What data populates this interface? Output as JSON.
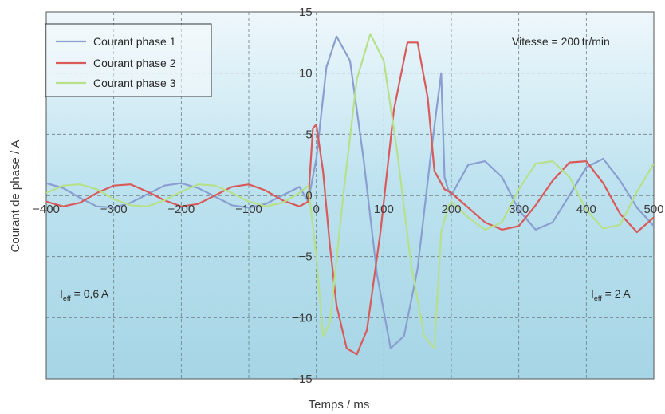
{
  "chart_data": {
    "type": "line",
    "xlabel": "Temps / ms",
    "ylabel": "Courant de phase / A",
    "xlim": [
      -400,
      500
    ],
    "ylim": [
      -15,
      15
    ],
    "x_ticks": [
      -400,
      -300,
      -200,
      -100,
      0,
      100,
      200,
      300,
      400,
      500
    ],
    "y_ticks": [
      -15,
      -10,
      -5,
      0,
      5,
      10,
      15
    ],
    "x_tick_labels": [
      "−400",
      "−300",
      "−200",
      "−100",
      "0",
      "100",
      "200",
      "300",
      "400",
      "500"
    ],
    "y_tick_labels": [
      "−15",
      "−10",
      "−5",
      "0",
      "5",
      "10",
      "15"
    ],
    "grid": true,
    "legend_position": "top-left",
    "annotations": {
      "speed": "Vitesse = 200 tr/min",
      "ieff_left_main": "I",
      "ieff_left_sub": "eff",
      "ieff_left_value": " = 0,6 A",
      "ieff_right_main": "I",
      "ieff_right_sub": "eff",
      "ieff_right_value": " = 2 A"
    },
    "series": [
      {
        "name": "Courant phase 1",
        "color": "#8a9ed0",
        "x": [
          -400,
          -375,
          -350,
          -325,
          -300,
          -275,
          -250,
          -225,
          -200,
          -175,
          -150,
          -125,
          -100,
          -75,
          -50,
          -25,
          -12,
          0,
          15,
          30,
          50,
          70,
          90,
          110,
          130,
          150,
          170,
          185,
          190,
          195,
          200,
          225,
          250,
          275,
          300,
          325,
          350,
          375,
          400,
          425,
          450,
          475,
          500
        ],
        "y": [
          1.0,
          0.6,
          -0.2,
          -0.9,
          -1.0,
          -0.6,
          0.1,
          0.8,
          1.0,
          0.6,
          -0.1,
          -0.8,
          -1.0,
          -0.7,
          0.0,
          0.7,
          -0.5,
          3.0,
          10.5,
          13.0,
          11.0,
          3.0,
          -6.5,
          -12.5,
          -11.5,
          -6.0,
          3.5,
          10.0,
          1.5,
          0.5,
          0.0,
          2.5,
          2.8,
          1.5,
          -1.2,
          -2.8,
          -2.2,
          0.0,
          2.3,
          3.0,
          1.2,
          -1.0,
          -2.5
        ]
      },
      {
        "name": "Courant phase 2",
        "color": "#d85a5a",
        "x": [
          -400,
          -375,
          -350,
          -325,
          -300,
          -275,
          -250,
          -225,
          -200,
          -175,
          -150,
          -125,
          -100,
          -75,
          -50,
          -25,
          -12,
          -5,
          0,
          10,
          20,
          30,
          45,
          60,
          75,
          95,
          115,
          135,
          150,
          165,
          175,
          190,
          200,
          225,
          250,
          275,
          300,
          325,
          350,
          375,
          400,
          425,
          450,
          475,
          500
        ],
        "y": [
          -0.5,
          -0.9,
          -0.6,
          0.2,
          0.8,
          0.9,
          0.3,
          -0.4,
          -0.9,
          -0.7,
          0.0,
          0.7,
          0.9,
          0.4,
          -0.4,
          -0.9,
          -0.5,
          5.5,
          5.8,
          2.0,
          -4.0,
          -9.0,
          -12.5,
          -13.0,
          -11.0,
          -3.0,
          7.0,
          12.5,
          12.5,
          8.0,
          2.0,
          0.5,
          0.2,
          -1.0,
          -2.2,
          -2.8,
          -2.5,
          -0.8,
          1.2,
          2.7,
          2.8,
          1.0,
          -1.5,
          -3.0,
          -1.8
        ]
      },
      {
        "name": "Courant phase 3",
        "color": "#b6e08a",
        "x": [
          -400,
          -375,
          -350,
          -325,
          -300,
          -275,
          -250,
          -225,
          -200,
          -175,
          -150,
          -125,
          -100,
          -75,
          -50,
          -25,
          -12,
          0,
          10,
          20,
          40,
          60,
          80,
          100,
          120,
          140,
          160,
          175,
          185,
          195,
          200,
          225,
          250,
          275,
          300,
          325,
          350,
          375,
          400,
          425,
          450,
          475,
          500
        ],
        "y": [
          0.2,
          0.8,
          0.9,
          0.5,
          -0.3,
          -0.8,
          -0.9,
          -0.4,
          0.3,
          0.9,
          0.8,
          0.2,
          -0.5,
          -0.9,
          -0.6,
          0.2,
          0.8,
          -5.0,
          -11.5,
          -10.5,
          0.0,
          9.5,
          13.2,
          11.0,
          3.5,
          -5.5,
          -11.5,
          -12.5,
          -3.0,
          -1.0,
          -0.5,
          -1.8,
          -2.8,
          -2.2,
          0.5,
          2.6,
          2.8,
          1.5,
          -1.2,
          -2.7,
          -2.4,
          0.3,
          2.6
        ]
      }
    ]
  }
}
